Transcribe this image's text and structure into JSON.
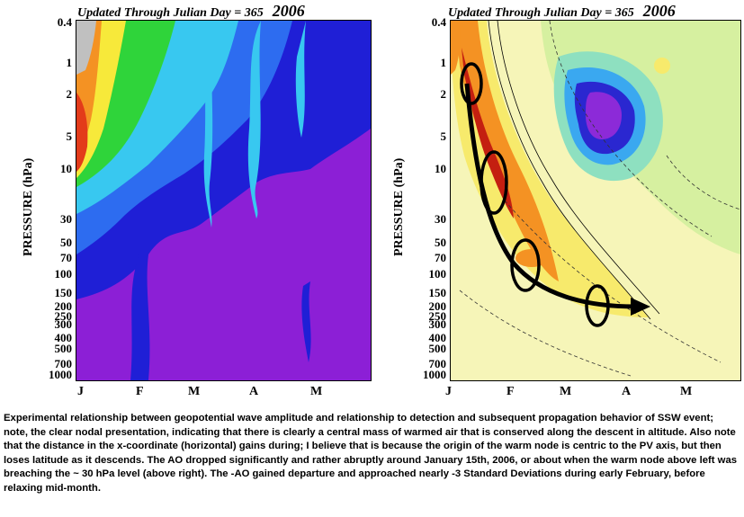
{
  "chart_data": [
    {
      "type": "heatmap",
      "title": "Updated Through Julian Day = 365",
      "year_label": "2006",
      "ylabel": "PRESSURE (hPa)",
      "y_ticks": [
        "0.4",
        "1",
        "2",
        "5",
        "10",
        "30",
        "50",
        "70",
        "100",
        "150",
        "200",
        "250",
        "300",
        "400",
        "500",
        "700",
        "1000"
      ],
      "x_ticks": [
        "J",
        "F",
        "M",
        "A",
        "M"
      ],
      "colors": {
        "cold": "#8c1fd6",
        "blue": "#1f1fd6",
        "cyan": "#38c8f0",
        "green": "#2fd43a",
        "yellow": "#f7e93a",
        "red": "#e33b1a"
      }
    },
    {
      "type": "heatmap",
      "title": "Updated Through Julian Day = 365",
      "year_label": "2006",
      "ylabel": "PRESSURE (hPa)",
      "y_ticks": [
        "0.4",
        "1",
        "2",
        "5",
        "10",
        "30",
        "50",
        "70",
        "100",
        "150",
        "200",
        "250",
        "300",
        "400",
        "500",
        "700",
        "1000"
      ],
      "x_ticks": [
        "J",
        "F",
        "M",
        "A",
        "M"
      ],
      "colors": {
        "warm": "#c41f10",
        "orange": "#f49223",
        "yellow": "#f7ea6c",
        "cream": "#fbf7c6",
        "green": "#aee882",
        "blue": "#2a27d0",
        "purple": "#8c2ad8"
      }
    }
  ],
  "caption": "Experimental relationship between geopotential wave amplitude and relationship to detection and subsequent propagation behavior of SSW event;  note, the clear nodal presentation, indicating that there is clearly a central mass of warmed air that is conserved along the descent in altitude.  Also note that the distance in the x-coordinate (horizontal) gains during; I believe that is because the origin of the warm node is centric to the PV axis, but then loses latitude as it descends.  The AO dropped significantly and rather abruptly around January 15th, 2006, or about when the warm node above left was breaching the ~ 30 hPa level (above right).  The -AO gained departure and approached nearly -3 Standard Deviations during early February, before relaxing mid-month."
}
